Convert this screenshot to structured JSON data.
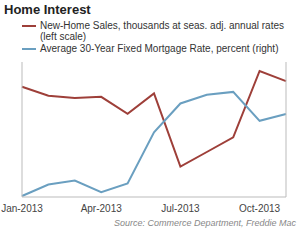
{
  "chart_data": {
    "type": "line",
    "title": "Home Interest",
    "source": "Source: Commerce Department, Freddie Mac",
    "categories": [
      "Jan-2013",
      null,
      null,
      "Apr-2013",
      null,
      null,
      "Jul-2013",
      null,
      null,
      "Oct-2013",
      null
    ],
    "series": [
      {
        "name": "New-Home Sales, thousands at seas. adj. annual rates (left scale)",
        "color": "#9e3f39",
        "values": [
          448,
          440,
          438,
          439,
          424,
          442,
          377,
          390,
          403,
          462,
          453
        ]
      },
      {
        "name": "Average 30-Year Fixed Mortgage Rate, percent (right)",
        "color": "#6a9fc0",
        "axis": "y2",
        "values": [
          3.41,
          3.53,
          3.57,
          3.45,
          3.54,
          4.07,
          4.37,
          4.46,
          4.49,
          4.19,
          4.26
        ]
      }
    ],
    "ylim": [
      350,
      470
    ],
    "y2lim": [
      3.4,
      4.8
    ],
    "tick_labels": "x",
    "grid": false,
    "legend": "top"
  }
}
